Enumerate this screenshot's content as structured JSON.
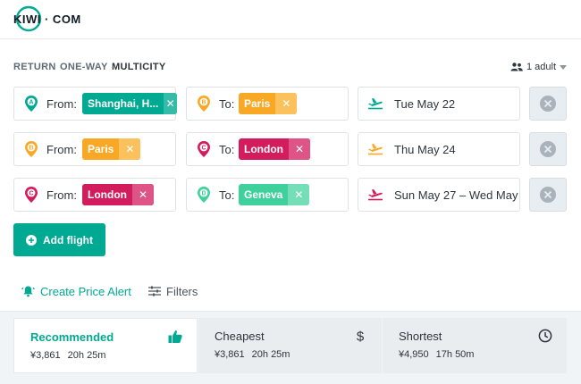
{
  "header": {
    "logo_text": "KIWI · COM"
  },
  "trip_types": {
    "return": "RETURN",
    "one_way": "ONE-WAY",
    "multicity": "MULTICITY"
  },
  "passengers": {
    "label": "1 adult"
  },
  "segments": [
    {
      "from_label": "From:",
      "from_value": "Shanghai, H...",
      "from_marker": "A",
      "from_color": "#00a991",
      "to_label": "To:",
      "to_value": "Paris",
      "to_marker": "B",
      "to_color": "#f9a825",
      "date": "Tue May 22",
      "date_color": "#00a991"
    },
    {
      "from_label": "From:",
      "from_value": "Paris",
      "from_marker": "B",
      "from_color": "#f9a825",
      "to_label": "To:",
      "to_value": "London",
      "to_marker": "C",
      "to_color": "#d21c5b",
      "date": "Thu May 24",
      "date_color": "#f9a825"
    },
    {
      "from_label": "From:",
      "from_value": "London",
      "from_marker": "C",
      "from_color": "#d21c5b",
      "to_label": "To:",
      "to_value": "Geneva",
      "to_marker": "D",
      "to_color": "#3fd19b",
      "date": "Sun May 27 – Wed May",
      "date_color": "#d21c5b"
    }
  ],
  "add_flight": {
    "label": "Add flight"
  },
  "links": {
    "price_alert": "Create Price Alert",
    "filters": "Filters"
  },
  "sort_tabs": [
    {
      "title": "Recommended",
      "price": "¥3,861",
      "duration": "20h 25m",
      "icon": "thumbs-up-icon"
    },
    {
      "title": "Cheapest",
      "price": "¥3,861",
      "duration": "20h 25m",
      "icon": "dollar-icon"
    },
    {
      "title": "Shortest",
      "price": "¥4,950",
      "duration": "17h 50m",
      "icon": "clock-icon"
    }
  ],
  "colors": {
    "accent": "#00a991",
    "text": "#2e353b",
    "muted": "#5f6a74"
  }
}
